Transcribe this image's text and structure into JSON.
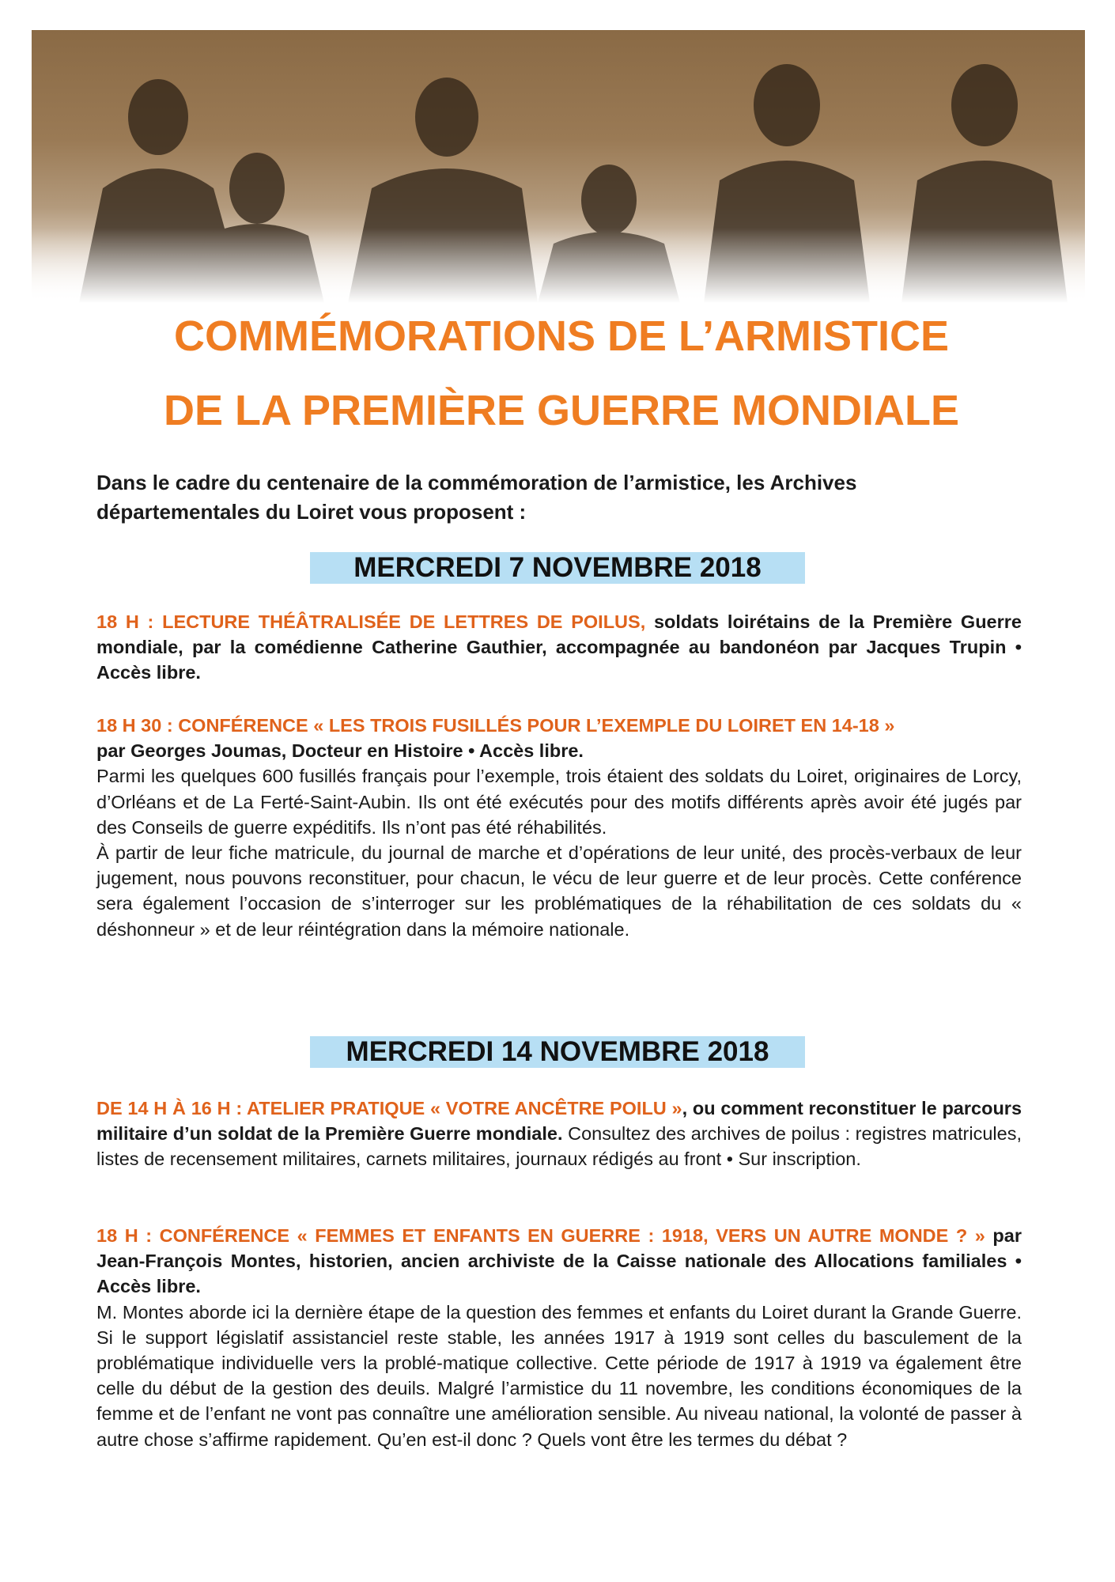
{
  "header": {
    "title_line1": "COMMÉMORATIONS DE L’ARMISTICE",
    "title_line2": "DE LA PREMIÈRE GUERRE MONDIALE",
    "title_color": "#ef7d22"
  },
  "intro": "Dans le cadre du centenaire de la commémoration de l’armistice, les Archives départementales du Loiret vous proposent :",
  "days": [
    {
      "date": "MERCREDI 7 NOVEMBRE 2018",
      "events": [
        {
          "heading": "18 H : LECTURE THÉÂTRALISÉE DE LETTRES DE POILUS,",
          "subtitle": " soldats loirétains de la Première Guerre mondiale, par la comédienne Catherine Gauthier, accompagnée au bandonéon par Jacques Trupin • Accès libre.",
          "body": []
        },
        {
          "heading": "18 H 30 : CONFÉRENCE « LES TROIS FUSILLÉS POUR L’EXEMPLE DU LOIRET EN 14-18 »",
          "subtitle": "par Georges Joumas, Docteur en Histoire • Accès libre.",
          "body": [
            "Parmi les quelques 600 fusillés français pour l’exemple, trois étaient des soldats du Loiret, originaires de Lorcy, d’Orléans et de La Ferté-Saint-Aubin. Ils ont été exécutés pour des motifs différents après avoir été jugés par des Conseils de guerre expéditifs. Ils n’ont pas été réhabilités.",
            "À partir de leur fiche matricule, du journal de marche et d’opérations de leur unité, des procès-verbaux de leur jugement, nous pouvons reconstituer, pour chacun, le vécu de leur guerre et de leur procès. Cette conférence sera également l’occasion de s’interroger sur les problématiques de la réhabilitation de ces soldats du « déshonneur » et de leur réintégration dans la mémoire nationale."
          ]
        }
      ]
    },
    {
      "date": "MERCREDI 14 NOVEMBRE 2018",
      "events": [
        {
          "heading": "DE 14 H À 16 H : ATELIER PRATIQUE « VOTRE ANCÊTRE POILU »",
          "subtitle": ", ou comment reconstituer le parcours militaire d’un soldat de la Première Guerre mondiale.",
          "body": [
            " Consultez des archives de poilus : registres matricules, listes de recensement militaires, carnets militaires, journaux rédigés au front • Sur inscription."
          ]
        },
        {
          "heading": "18 H : CONFÉRENCE « FEMMES ET ENFANTS EN GUERRE : 1918, VERS UN AUTRE MONDE ? »",
          "subtitle": " par Jean-François Montes, historien, ancien archiviste de la Caisse nationale des Allocations familiales • Accès libre.",
          "body": [
            "M. Montes aborde ici la dernière étape de la question des femmes et enfants du Loiret durant la Grande Guerre. Si le support législatif assistanciel reste stable, les années 1917 à 1919 sont celles du basculement de la problématique individuelle vers la problé-matique collective. Cette  période de 1917 à 1919 va également être celle du début de la gestion des deuils. Malgré l’armistice du 11 novembre, les conditions économiques de la femme et de l’enfant ne vont pas connaître une amélioration sensible. Au niveau national, la volonté de passer à autre chose s’affirme rapidement. Qu’en est-il donc ? Quels vont être les termes du débat ?"
          ]
        }
      ]
    }
  ],
  "colors": {
    "accent": "#e0621b",
    "date_band": "#b7dff4",
    "photo_tone": "#8a6a45"
  }
}
